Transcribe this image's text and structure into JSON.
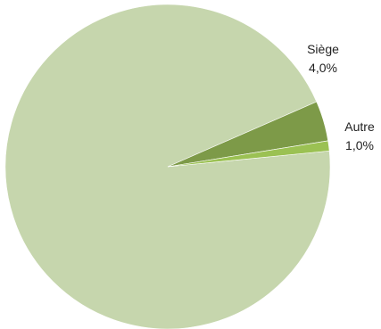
{
  "chart_data": {
    "type": "pie",
    "title": "",
    "slices": [
      {
        "label": "",
        "value_label": "",
        "value": 95.0,
        "color": "#c6d6ad"
      },
      {
        "label": "Siège",
        "value_label": "4,0%",
        "value": 4.0,
        "color": "#7d9a48"
      },
      {
        "label": "Autre",
        "value_label": "1,0%",
        "value": 1.0,
        "color": "#9bc153"
      }
    ],
    "legend": "none"
  }
}
